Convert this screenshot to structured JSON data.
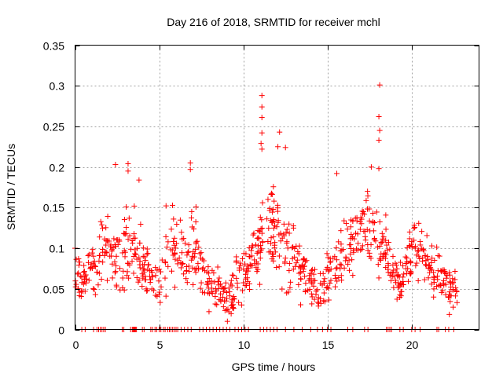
{
  "chart_data": {
    "type": "scatter",
    "title": "Day 216 of 2018, SRMTID for receiver mchl",
    "xlabel": "GPS time / hours",
    "ylabel": "SRMTID / TECUs",
    "xlim": [
      0,
      24
    ],
    "ylim": [
      0,
      0.35
    ],
    "xticks": [
      0,
      5,
      10,
      15,
      20
    ],
    "xtick_labels": [
      "0",
      "5",
      "10",
      "15",
      "20"
    ],
    "yticks": [
      0,
      0.05,
      0.1,
      0.15,
      0.2,
      0.25,
      0.3,
      0.35
    ],
    "ytick_labels": [
      "0",
      "0.05",
      "0.1",
      "0.15",
      "0.2",
      "0.25",
      "0.3",
      "0.35"
    ],
    "grid": true,
    "marker": "+",
    "color": "#ff0000",
    "legend": "none",
    "series": [
      {
        "name": "SRMTID",
        "outliers": [
          {
            "x": 11.1,
            "y": 0.288
          },
          {
            "x": 11.1,
            "y": 0.274
          },
          {
            "x": 11.1,
            "y": 0.261
          },
          {
            "x": 11.1,
            "y": 0.242
          },
          {
            "x": 11.05,
            "y": 0.229
          },
          {
            "x": 11.1,
            "y": 0.222
          },
          {
            "x": 12.15,
            "y": 0.243
          },
          {
            "x": 12.05,
            "y": 0.225
          },
          {
            "x": 12.5,
            "y": 0.224
          },
          {
            "x": 18.1,
            "y": 0.301
          },
          {
            "x": 18.05,
            "y": 0.262
          },
          {
            "x": 18.1,
            "y": 0.245
          },
          {
            "x": 18.05,
            "y": 0.233
          },
          {
            "x": 18.05,
            "y": 0.198
          },
          {
            "x": 17.6,
            "y": 0.2
          },
          {
            "x": 2.4,
            "y": 0.203
          },
          {
            "x": 3.15,
            "y": 0.204
          },
          {
            "x": 3.15,
            "y": 0.195
          },
          {
            "x": 6.85,
            "y": 0.205
          },
          {
            "x": 6.85,
            "y": 0.197
          },
          {
            "x": 3.8,
            "y": 0.184
          },
          {
            "x": 15.55,
            "y": 0.192
          },
          {
            "x": 9.05,
            "y": 0.01
          },
          {
            "x": 0.0,
            "y": 0.1
          }
        ],
        "envelope": [
          {
            "x": 0.0,
            "mean": 0.068,
            "spread": 0.025
          },
          {
            "x": 0.5,
            "mean": 0.06,
            "spread": 0.025
          },
          {
            "x": 1.0,
            "mean": 0.075,
            "spread": 0.03
          },
          {
            "x": 1.5,
            "mean": 0.095,
            "spread": 0.04
          },
          {
            "x": 2.0,
            "mean": 0.1,
            "spread": 0.045
          },
          {
            "x": 2.5,
            "mean": 0.095,
            "spread": 0.05
          },
          {
            "x": 3.0,
            "mean": 0.105,
            "spread": 0.05
          },
          {
            "x": 3.5,
            "mean": 0.11,
            "spread": 0.045
          },
          {
            "x": 4.0,
            "mean": 0.085,
            "spread": 0.04
          },
          {
            "x": 4.5,
            "mean": 0.06,
            "spread": 0.025
          },
          {
            "x": 5.0,
            "mean": 0.055,
            "spread": 0.025
          },
          {
            "x": 5.5,
            "mean": 0.095,
            "spread": 0.05
          },
          {
            "x": 6.0,
            "mean": 0.1,
            "spread": 0.05
          },
          {
            "x": 6.5,
            "mean": 0.085,
            "spread": 0.04
          },
          {
            "x": 7.0,
            "mean": 0.1,
            "spread": 0.05
          },
          {
            "x": 7.5,
            "mean": 0.075,
            "spread": 0.035
          },
          {
            "x": 8.0,
            "mean": 0.05,
            "spread": 0.025
          },
          {
            "x": 8.5,
            "mean": 0.05,
            "spread": 0.03
          },
          {
            "x": 9.0,
            "mean": 0.035,
            "spread": 0.02
          },
          {
            "x": 9.5,
            "mean": 0.055,
            "spread": 0.035
          },
          {
            "x": 10.0,
            "mean": 0.07,
            "spread": 0.03
          },
          {
            "x": 10.5,
            "mean": 0.085,
            "spread": 0.035
          },
          {
            "x": 11.0,
            "mean": 0.11,
            "spread": 0.05
          },
          {
            "x": 11.5,
            "mean": 0.12,
            "spread": 0.05
          },
          {
            "x": 12.0,
            "mean": 0.12,
            "spread": 0.05
          },
          {
            "x": 12.5,
            "mean": 0.1,
            "spread": 0.05
          },
          {
            "x": 13.0,
            "mean": 0.09,
            "spread": 0.04
          },
          {
            "x": 13.5,
            "mean": 0.07,
            "spread": 0.035
          },
          {
            "x": 14.0,
            "mean": 0.055,
            "spread": 0.03
          },
          {
            "x": 14.5,
            "mean": 0.05,
            "spread": 0.025
          },
          {
            "x": 15.0,
            "mean": 0.065,
            "spread": 0.035
          },
          {
            "x": 15.5,
            "mean": 0.085,
            "spread": 0.04
          },
          {
            "x": 16.0,
            "mean": 0.1,
            "spread": 0.045
          },
          {
            "x": 16.5,
            "mean": 0.11,
            "spread": 0.04
          },
          {
            "x": 17.0,
            "mean": 0.12,
            "spread": 0.035
          },
          {
            "x": 17.5,
            "mean": 0.125,
            "spread": 0.035
          },
          {
            "x": 18.0,
            "mean": 0.11,
            "spread": 0.04
          },
          {
            "x": 18.5,
            "mean": 0.095,
            "spread": 0.035
          },
          {
            "x": 19.0,
            "mean": 0.075,
            "spread": 0.03
          },
          {
            "x": 19.5,
            "mean": 0.065,
            "spread": 0.03
          },
          {
            "x": 20.0,
            "mean": 0.09,
            "spread": 0.04
          },
          {
            "x": 20.5,
            "mean": 0.095,
            "spread": 0.035
          },
          {
            "x": 21.0,
            "mean": 0.075,
            "spread": 0.03
          },
          {
            "x": 21.5,
            "mean": 0.07,
            "spread": 0.03
          },
          {
            "x": 22.0,
            "mean": 0.06,
            "spread": 0.03
          },
          {
            "x": 22.5,
            "mean": 0.05,
            "spread": 0.025
          },
          {
            "x": 22.7,
            "mean": 0.045,
            "spread": 0.02
          }
        ],
        "zero_points_x": [
          0.4,
          0.6,
          1.1,
          1.3,
          1.4,
          1.5,
          1.6,
          1.7,
          1.8,
          2.8,
          2.9,
          3.3,
          3.4,
          3.45,
          3.5,
          3.55,
          3.6,
          3.65,
          4.0,
          4.1,
          4.5,
          4.6,
          4.75,
          4.85,
          5.0,
          5.1,
          5.25,
          5.35,
          5.5,
          5.6,
          5.7,
          5.8,
          5.9,
          6.0,
          6.1,
          6.3,
          6.5,
          6.7,
          6.9,
          7.4,
          7.6,
          7.8,
          8.0,
          8.2,
          8.4,
          8.6,
          8.8,
          9.0,
          9.2,
          9.5,
          9.7,
          9.9,
          10.1,
          10.3,
          11.0,
          11.2,
          11.4,
          11.6,
          11.8,
          12.0,
          12.5,
          13.0,
          13.5,
          14.0,
          14.4,
          14.7,
          15.0,
          15.2,
          16.2,
          16.5,
          17.2,
          17.4,
          18.5,
          18.6,
          18.7,
          18.8,
          19.3,
          19.5,
          20.0,
          20.2,
          20.5,
          21.5,
          21.6,
          22.0,
          22.2,
          22.5
        ],
        "total_points_approx": 1500
      }
    ]
  }
}
